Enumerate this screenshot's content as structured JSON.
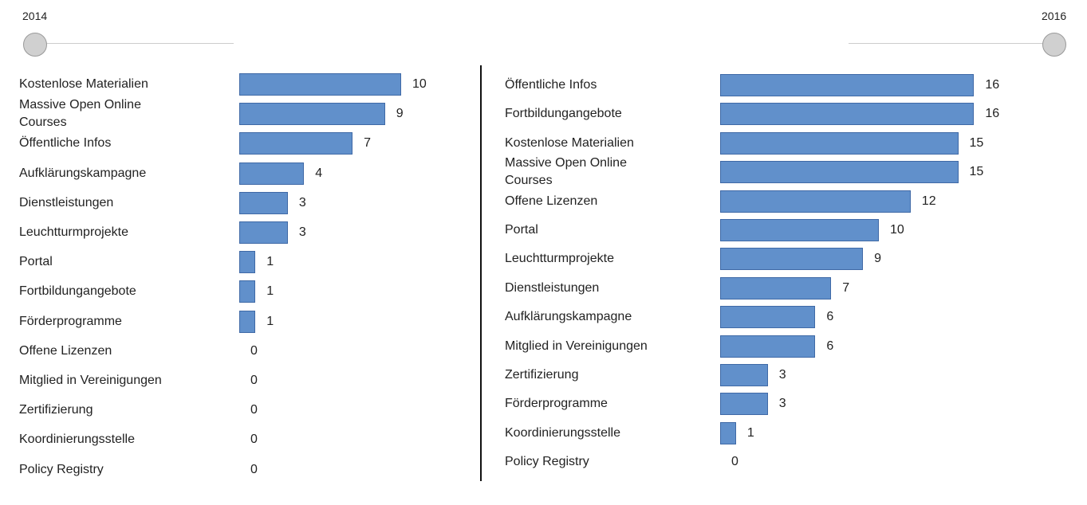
{
  "slider": {
    "start_label": "2014",
    "end_label": "2016"
  },
  "chart_data": [
    {
      "type": "bar",
      "orientation": "horizontal",
      "title": "2014",
      "categories": [
        "Kostenlose Materialien",
        "Massive Open Online Courses",
        "Öffentliche Infos",
        "Aufklärungskampagne",
        "Dienstleistungen",
        "Leuchtturmprojekte",
        "Portal",
        "Fortbildungangebote",
        "Förderprogramme",
        "Offene Lizenzen",
        "Mitglied in Vereinigungen",
        "Zertifizierung",
        "Koordinierungsstelle",
        "Policy Registry"
      ],
      "values": [
        10,
        9,
        7,
        4,
        3,
        3,
        1,
        1,
        1,
        0,
        0,
        0,
        0,
        0
      ]
    },
    {
      "type": "bar",
      "orientation": "horizontal",
      "title": "2016",
      "categories": [
        "Öffentliche Infos",
        "Fortbildungangebote",
        "Kostenlose Materialien",
        "Massive Open Online Courses",
        "Offene Lizenzen",
        "Portal",
        "Leuchtturmprojekte",
        "Dienstleistungen",
        "Aufklärungskampagne",
        "Mitglied in Vereinigungen",
        "Zertifizierung",
        "Förderprogramme",
        "Koordinierungsstelle",
        "Policy Registry"
      ],
      "values": [
        16,
        16,
        15,
        15,
        12,
        10,
        9,
        7,
        6,
        6,
        3,
        3,
        1,
        0
      ]
    }
  ],
  "colors": {
    "bar": "#6190cb",
    "bar_border": "#3f69a6"
  }
}
